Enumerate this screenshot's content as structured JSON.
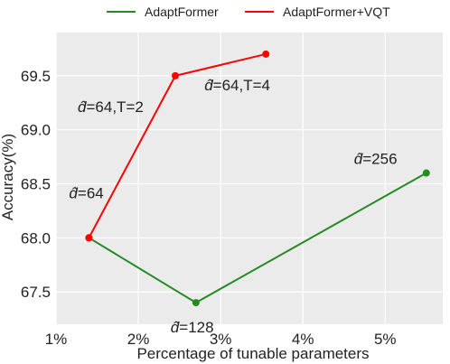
{
  "chart_data": {
    "type": "line",
    "xlabel": "Percentage of tunable parameters",
    "ylabel": "Accuracy(%)",
    "xlim": [
      1,
      5.7
    ],
    "ylim": [
      67.2,
      69.9
    ],
    "x_ticks": [
      1,
      2,
      3,
      4,
      5
    ],
    "x_tick_labels": [
      "1%",
      "2%",
      "3%",
      "4%",
      "5%"
    ],
    "y_ticks": [
      67.5,
      68.0,
      68.5,
      69.0,
      69.5
    ],
    "y_tick_labels": [
      "67.5",
      "68.0",
      "68.5",
      "69.0",
      "69.5"
    ],
    "grid": true,
    "legend_position": "top",
    "series": [
      {
        "name": "AdaptFormer",
        "color": "#228B22",
        "points": [
          {
            "x": 1.4,
            "y": 68.0,
            "label": "=64"
          },
          {
            "x": 2.7,
            "y": 67.4,
            "label": "=128"
          },
          {
            "x": 5.5,
            "y": 68.6,
            "label": "=256"
          }
        ]
      },
      {
        "name": "AdaptFormer+VQT",
        "color": "#FF0000",
        "points": [
          {
            "x": 1.4,
            "y": 68.0,
            "label": ""
          },
          {
            "x": 2.45,
            "y": 69.5,
            "label": "=64,T=2"
          },
          {
            "x": 3.55,
            "y": 69.7,
            "label": "=64,T=4"
          }
        ]
      }
    ],
    "annotation_symbol": "d̂"
  }
}
